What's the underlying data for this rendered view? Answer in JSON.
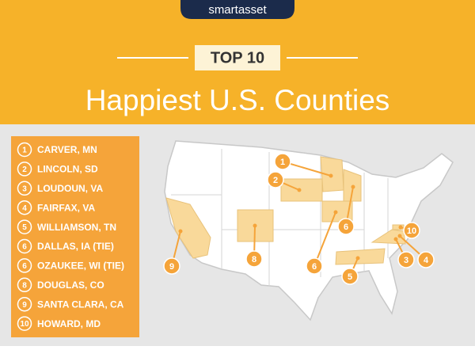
{
  "header": {
    "logo": "smartasset",
    "badge": "TOP 10",
    "title": "Happiest U.S. Counties"
  },
  "list": [
    {
      "rank": 1,
      "name": "CARVER, MN"
    },
    {
      "rank": 2,
      "name": "LINCOLN, SD"
    },
    {
      "rank": 3,
      "name": "LOUDOUN, VA"
    },
    {
      "rank": 4,
      "name": "FAIRFAX, VA"
    },
    {
      "rank": 5,
      "name": "WILLIAMSON, TN"
    },
    {
      "rank": 6,
      "name": "DALLAS, IA (TIE)"
    },
    {
      "rank": 6,
      "name": "OZAUKEE, WI (TIE)"
    },
    {
      "rank": 8,
      "name": "DOUGLAS, CO"
    },
    {
      "rank": 9,
      "name": "SANTA CLARA, CA"
    },
    {
      "rank": 10,
      "name": "HOWARD, MD"
    }
  ],
  "map": {
    "markers": [
      {
        "label": 1
      },
      {
        "label": 2
      },
      {
        "label": 3
      },
      {
        "label": 4
      },
      {
        "label": 5
      },
      {
        "label": 6
      },
      {
        "label": 6
      },
      {
        "label": 8
      },
      {
        "label": 9
      },
      {
        "label": 10
      }
    ]
  }
}
